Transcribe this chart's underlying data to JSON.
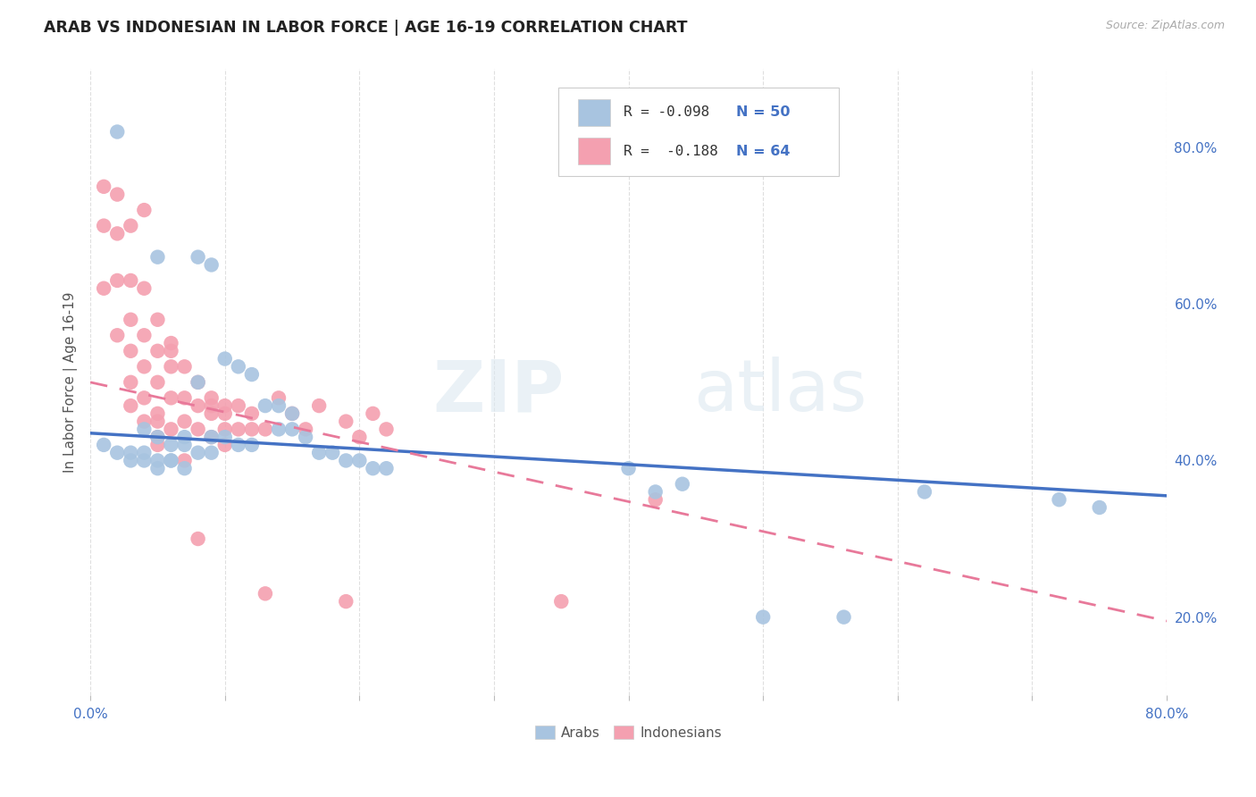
{
  "title": "ARAB VS INDONESIAN IN LABOR FORCE | AGE 16-19 CORRELATION CHART",
  "source": "Source: ZipAtlas.com",
  "ylabel": "In Labor Force | Age 16-19",
  "xlim": [
    0.0,
    0.8
  ],
  "ylim": [
    0.1,
    0.9
  ],
  "xtick_labels": [
    "0.0%",
    "",
    "",
    "",
    "",
    "",
    "",
    "",
    "80.0%"
  ],
  "xtick_vals": [
    0.0,
    0.1,
    0.2,
    0.3,
    0.4,
    0.5,
    0.6,
    0.7,
    0.8
  ],
  "ytick_labels": [
    "20.0%",
    "40.0%",
    "60.0%",
    "80.0%"
  ],
  "ytick_vals": [
    0.2,
    0.4,
    0.6,
    0.8
  ],
  "arab_color": "#a8c4e0",
  "indonesian_color": "#f4a0b0",
  "arab_line_color": "#4472c4",
  "indonesian_line_color": "#e8799a",
  "watermark_zip": "ZIP",
  "watermark_atlas": "atlas",
  "legend_R_arab": "R = -0.098",
  "legend_N_arab": "N = 50",
  "legend_R_indo": "R =  -0.188",
  "legend_N_indo": "N = 64",
  "arab_scatter_x": [
    0.02,
    0.05,
    0.08,
    0.09,
    0.1,
    0.11,
    0.12,
    0.13,
    0.14,
    0.15,
    0.04,
    0.05,
    0.06,
    0.07,
    0.08,
    0.09,
    0.1,
    0.11,
    0.12,
    0.14,
    0.15,
    0.16,
    0.17,
    0.18,
    0.19,
    0.2,
    0.21,
    0.22,
    0.01,
    0.02,
    0.03,
    0.03,
    0.04,
    0.04,
    0.05,
    0.05,
    0.06,
    0.06,
    0.07,
    0.07,
    0.08,
    0.09,
    0.4,
    0.42,
    0.44,
    0.5,
    0.56,
    0.62,
    0.72,
    0.75
  ],
  "arab_scatter_y": [
    0.82,
    0.66,
    0.66,
    0.65,
    0.53,
    0.52,
    0.51,
    0.47,
    0.47,
    0.46,
    0.44,
    0.43,
    0.42,
    0.43,
    0.5,
    0.43,
    0.43,
    0.42,
    0.42,
    0.44,
    0.44,
    0.43,
    0.41,
    0.41,
    0.4,
    0.4,
    0.39,
    0.39,
    0.42,
    0.41,
    0.41,
    0.4,
    0.41,
    0.4,
    0.4,
    0.39,
    0.4,
    0.4,
    0.39,
    0.42,
    0.41,
    0.41,
    0.39,
    0.36,
    0.37,
    0.2,
    0.2,
    0.36,
    0.35,
    0.34
  ],
  "indo_scatter_x": [
    0.01,
    0.01,
    0.02,
    0.02,
    0.02,
    0.03,
    0.03,
    0.03,
    0.03,
    0.03,
    0.04,
    0.04,
    0.04,
    0.04,
    0.04,
    0.05,
    0.05,
    0.05,
    0.05,
    0.05,
    0.05,
    0.06,
    0.06,
    0.06,
    0.06,
    0.07,
    0.07,
    0.07,
    0.08,
    0.08,
    0.08,
    0.09,
    0.09,
    0.09,
    0.1,
    0.1,
    0.1,
    0.11,
    0.11,
    0.12,
    0.12,
    0.13,
    0.14,
    0.15,
    0.16,
    0.17,
    0.19,
    0.2,
    0.21,
    0.22,
    0.01,
    0.02,
    0.03,
    0.04,
    0.05,
    0.06,
    0.07,
    0.08,
    0.09,
    0.1,
    0.13,
    0.19,
    0.35,
    0.42
  ],
  "indo_scatter_y": [
    0.7,
    0.62,
    0.69,
    0.63,
    0.56,
    0.63,
    0.58,
    0.54,
    0.5,
    0.47,
    0.62,
    0.56,
    0.52,
    0.48,
    0.45,
    0.58,
    0.54,
    0.5,
    0.46,
    0.43,
    0.42,
    0.55,
    0.52,
    0.48,
    0.44,
    0.52,
    0.48,
    0.45,
    0.5,
    0.47,
    0.44,
    0.48,
    0.46,
    0.43,
    0.47,
    0.44,
    0.42,
    0.47,
    0.44,
    0.46,
    0.44,
    0.44,
    0.48,
    0.46,
    0.44,
    0.47,
    0.45,
    0.43,
    0.46,
    0.44,
    0.75,
    0.74,
    0.7,
    0.72,
    0.45,
    0.54,
    0.4,
    0.3,
    0.47,
    0.46,
    0.23,
    0.22,
    0.22,
    0.35
  ],
  "background_color": "#ffffff",
  "grid_color": "#d8d8d8",
  "arab_trend_start_y": 0.435,
  "arab_trend_end_y": 0.355,
  "indo_trend_start_y": 0.5,
  "indo_trend_end_y": 0.195
}
